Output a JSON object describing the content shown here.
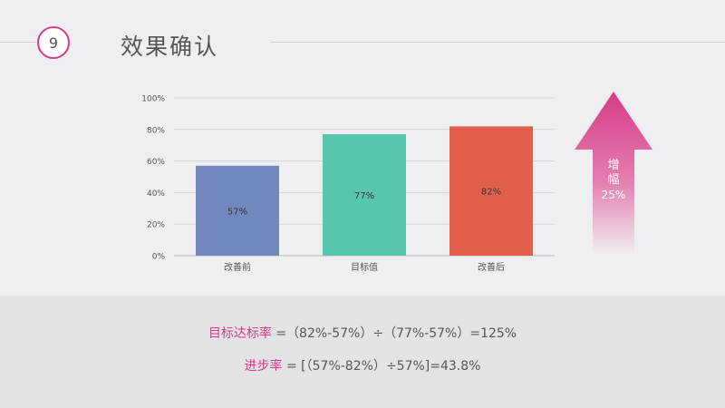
{
  "slide": {
    "number": "9",
    "title": "效果确认"
  },
  "chart_data": {
    "type": "bar",
    "categories": [
      "改善前",
      "目标值",
      "改善后"
    ],
    "values": [
      57,
      77,
      82
    ],
    "data_labels": [
      "57%",
      "77%",
      "82%"
    ],
    "bar_colors": [
      "#7088bd",
      "#58c5ad",
      "#e2604b"
    ],
    "yticks": [
      "0%",
      "20%",
      "40%",
      "60%",
      "80%",
      "100%"
    ],
    "ylim": [
      0,
      100
    ],
    "grid": true
  },
  "arrow": {
    "line1": "增",
    "line2": "幅",
    "pct": "25%",
    "color": "#d63c86"
  },
  "formulas": {
    "f1_label": "目标达标率",
    "f1_expr": " =（82%-57%）÷（77%-57%）=125%",
    "f2_label": "进步率",
    "f2_expr": " = [（57%-82%）÷57%]=43.8%"
  }
}
